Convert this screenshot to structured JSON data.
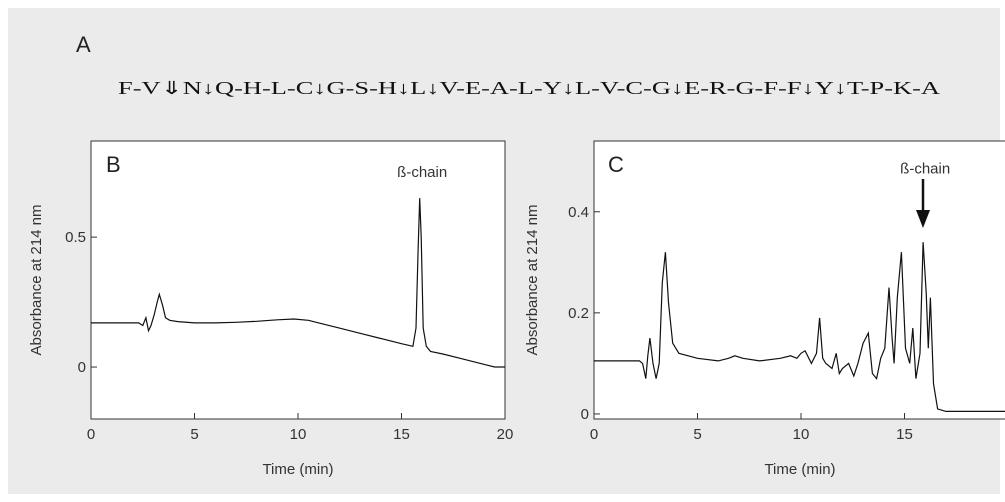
{
  "figure": {
    "label_a": "A",
    "sequence": "F-V⇓N↓Q-H-L-C↓G-S-H↓L↓V-E-A-L-Y↓L-V-C-G↓E-R-G-F-F↓Y↓T-P-K-A",
    "colors": {
      "background": "#ebebeb",
      "plot": "#ffffff",
      "trace": "#111111"
    }
  },
  "chart_data": [
    {
      "type": "line",
      "panel_label": "B",
      "xlabel": "Time (min)",
      "ylabel": "Absorbance at 214 nm",
      "xlim": [
        0,
        20
      ],
      "ylim": [
        -0.2,
        0.87
      ],
      "xticks": [
        0,
        5,
        10,
        15,
        20
      ],
      "xtick_labels": [
        "0",
        "5",
        "10",
        "15",
        "20"
      ],
      "yticks": [
        0,
        0.5
      ],
      "ytick_labels": [
        "0",
        "0.5"
      ],
      "grid": false,
      "series": [
        {
          "x": [
            0,
            2.3,
            2.5,
            2.65,
            2.78,
            2.9,
            3.05,
            3.2,
            3.3,
            3.45,
            3.6,
            3.8,
            4.2,
            5,
            6,
            7,
            8,
            9,
            9.8,
            10.5,
            11,
            12,
            13,
            14,
            15,
            15.55,
            15.7,
            15.8,
            15.88,
            15.95,
            16.05,
            16.2,
            16.4,
            17,
            18,
            19,
            19.5,
            20
          ],
          "y": [
            0.17,
            0.17,
            0.16,
            0.19,
            0.14,
            0.16,
            0.2,
            0.25,
            0.28,
            0.24,
            0.19,
            0.18,
            0.175,
            0.17,
            0.17,
            0.172,
            0.176,
            0.182,
            0.185,
            0.18,
            0.17,
            0.15,
            0.13,
            0.11,
            0.09,
            0.08,
            0.15,
            0.45,
            0.65,
            0.5,
            0.15,
            0.08,
            0.06,
            0.05,
            0.03,
            0.01,
            0,
            0
          ]
        }
      ],
      "annotations": [
        {
          "text": "ß-chain",
          "x": 16.0,
          "y": 0.7
        }
      ]
    },
    {
      "type": "line",
      "panel_label": "C",
      "xlabel": "Time (min)",
      "ylabel": "Absorbance at 214 nm",
      "xlim": [
        0,
        20
      ],
      "ylim": [
        -0.01,
        0.54
      ],
      "xticks": [
        0,
        5,
        10,
        15
      ],
      "xtick_labels": [
        "0",
        "5",
        "10",
        "15"
      ],
      "yticks": [
        0,
        0.2,
        0.4
      ],
      "ytick_labels": [
        "0",
        "0.2",
        "0.4"
      ],
      "grid": false,
      "series": [
        {
          "x": [
            0,
            2.2,
            2.35,
            2.5,
            2.6,
            2.7,
            2.85,
            3.0,
            3.15,
            3.3,
            3.45,
            3.6,
            3.8,
            4.1,
            5,
            6,
            6.5,
            6.8,
            7.2,
            8,
            9,
            9.5,
            9.8,
            10.0,
            10.2,
            10.5,
            10.75,
            10.9,
            11.05,
            11.2,
            11.5,
            11.7,
            11.85,
            12.0,
            12.3,
            12.55,
            12.75,
            13.0,
            13.25,
            13.45,
            13.65,
            13.85,
            14.05,
            14.25,
            14.4,
            14.5,
            14.65,
            14.85,
            15.05,
            15.25,
            15.4,
            15.55,
            15.75,
            15.9,
            16.05,
            16.15,
            16.25,
            16.4,
            16.6,
            17,
            18,
            19,
            20
          ],
          "y": [
            0.105,
            0.105,
            0.1,
            0.07,
            0.115,
            0.15,
            0.1,
            0.07,
            0.1,
            0.26,
            0.32,
            0.22,
            0.14,
            0.12,
            0.11,
            0.105,
            0.11,
            0.115,
            0.11,
            0.105,
            0.11,
            0.115,
            0.11,
            0.12,
            0.125,
            0.1,
            0.12,
            0.19,
            0.11,
            0.1,
            0.09,
            0.12,
            0.08,
            0.09,
            0.1,
            0.075,
            0.1,
            0.14,
            0.16,
            0.08,
            0.07,
            0.11,
            0.13,
            0.25,
            0.15,
            0.1,
            0.23,
            0.32,
            0.13,
            0.1,
            0.17,
            0.07,
            0.12,
            0.34,
            0.24,
            0.13,
            0.23,
            0.06,
            0.01,
            0.005,
            0.005,
            0.005,
            0.005
          ]
        }
      ],
      "annotations": [
        {
          "text": "ß-chain",
          "x": 16.0,
          "y": 0.46
        }
      ]
    }
  ]
}
